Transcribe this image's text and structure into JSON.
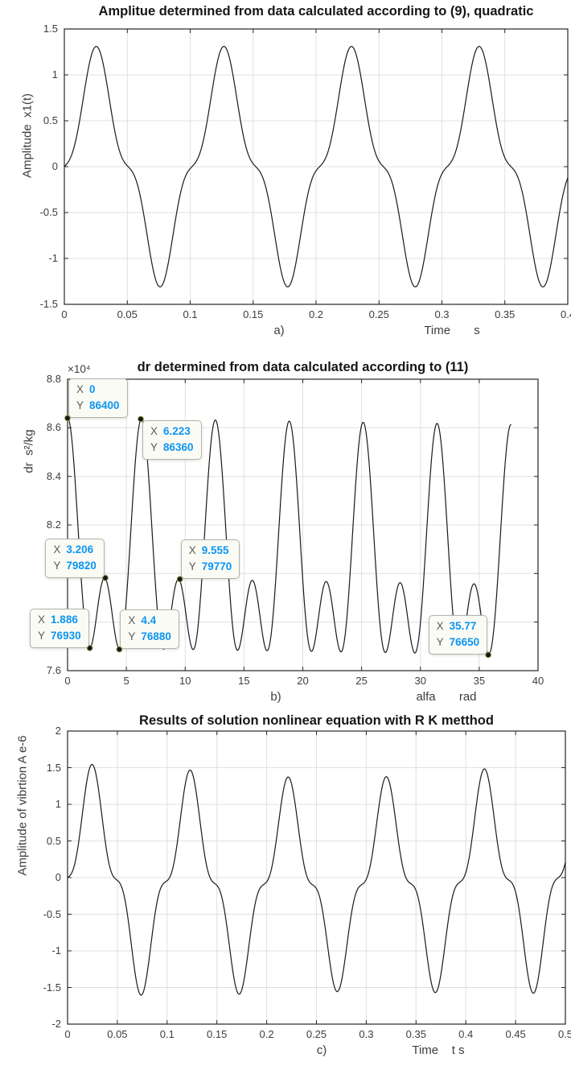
{
  "styles": {
    "background": "#ffffff",
    "axis_color": "#262626",
    "grid_color": "#e0e0e0",
    "curve_color": "#1a1a1a",
    "text_color": "#3d3d3d",
    "title_color": "#161616",
    "marker_color": "#151515",
    "marker_edge_color": "#99994d",
    "datatip_value_color": "#0d95f2",
    "datatip_label_color": "#5a5a5a",
    "datatip_bg": "#fbfbf5",
    "datatip_border": "#b4b4ac"
  },
  "chart_data": [
    {
      "type": "line",
      "panel": "a",
      "title": "Amplitue determined from data calculated according to (9), quadratic",
      "ylabel": "Amplitude  x1(t)",
      "xlabel": "Time       s",
      "corner_label": "a)",
      "xlim": [
        0,
        0.4
      ],
      "ylim": [
        -1.5,
        1.5
      ],
      "grid": true,
      "xticks": {
        "values": [
          0,
          0.05,
          0.1,
          0.15,
          0.2,
          0.25,
          0.3,
          0.35,
          0.4
        ],
        "labels": [
          "0",
          "0.05",
          "0.1",
          "0.15",
          "0.2",
          "0.25",
          "0.3",
          "0.35",
          "0.4"
        ]
      },
      "yticks": {
        "values": [
          -1.5,
          -1,
          -0.5,
          0,
          0.5,
          1,
          1.5
        ],
        "labels": [
          "-1.5",
          "-1",
          "-0.5",
          "0",
          "0.5",
          "1",
          "1.5"
        ]
      },
      "curve_model": {
        "x_start": 0,
        "x_end": 0.4,
        "period": 0.1014,
        "offset": 0,
        "terms": [
          {
            "fn": "sin",
            "n": 1,
            "amp": 1.04
          },
          {
            "fn": "sin",
            "n": 3,
            "amp": -0.27
          }
        ]
      },
      "key_points": {
        "peak_value": 1.3,
        "trough_value": -1.3,
        "cycles_shown": 4
      }
    },
    {
      "type": "line",
      "panel": "b",
      "title": "dr determined from data calculated according to (11)",
      "y_exponent_label": "×10⁴",
      "ylabel": "dr  s²/kg",
      "xlabel": "alfa       rad",
      "corner_label": "b)",
      "xlim": [
        0,
        40
      ],
      "ylim": [
        76000,
        88000
      ],
      "grid": true,
      "xticks": {
        "values": [
          0,
          5,
          10,
          15,
          20,
          25,
          30,
          35,
          40
        ],
        "labels": [
          "0",
          "5",
          "10",
          "15",
          "20",
          "25",
          "30",
          "35",
          "40"
        ]
      },
      "yticks": {
        "values": [
          76000,
          78000,
          80000,
          82000,
          84000,
          86000,
          88000
        ],
        "labels": [
          "7.6",
          "7.8",
          "8",
          "8.2",
          "8.4",
          "8.6",
          "8.8"
        ]
      },
      "curve_model": {
        "x_start": 0,
        "x_end": 37.72,
        "period": 6.28319,
        "offset": 80315,
        "drift": -7.5,
        "terms": [
          {
            "fn": "cos",
            "n": 1,
            "amp": 3358
          },
          {
            "fn": "cos",
            "n": 2,
            "amp": 2810
          },
          {
            "fn": "cos",
            "n": 3,
            "amp": -68
          }
        ]
      },
      "datatips": [
        {
          "x": 0,
          "y": 86400,
          "x_text": "0",
          "y_text": "86400",
          "attach": "bl"
        },
        {
          "x": 6.223,
          "y": 86360,
          "x_text": "6.223",
          "y_text": "86360",
          "attach": "tl"
        },
        {
          "x": 3.206,
          "y": 79820,
          "x_text": "3.206",
          "y_text": "79820",
          "attach": "br"
        },
        {
          "x": 9.555,
          "y": 79770,
          "x_text": "9.555",
          "y_text": "79770",
          "attach": "bl"
        },
        {
          "x": 1.886,
          "y": 76930,
          "x_text": "1.886",
          "y_text": "76930",
          "attach": "br"
        },
        {
          "x": 4.4,
          "y": 76880,
          "x_text": "4.4",
          "y_text": "76880",
          "attach": "bl"
        },
        {
          "x": 35.77,
          "y": 76650,
          "x_text": "35.77",
          "y_text": "76650",
          "attach": "br"
        }
      ]
    },
    {
      "type": "line",
      "panel": "c",
      "title": "Results of solution nonlinear equation with R K metthod",
      "ylabel": "Amplitude of vibrtion A e-6",
      "xlabel": "Time    t s",
      "corner_label": "c)",
      "xlim": [
        0,
        0.5
      ],
      "ylim": [
        -2,
        2
      ],
      "grid": true,
      "xticks": {
        "values": [
          0,
          0.05,
          0.1,
          0.15,
          0.2,
          0.25,
          0.3,
          0.35,
          0.4,
          0.45,
          0.5
        ],
        "labels": [
          "0",
          "0.05",
          "0.1",
          "0.15",
          "0.2",
          "0.25",
          "0.3",
          "0.35",
          "0.4",
          "0.45",
          "0.5"
        ]
      },
      "yticks": {
        "values": [
          -2,
          -1.5,
          -1,
          -0.5,
          0,
          0.5,
          1,
          1.5,
          2
        ],
        "labels": [
          "-2",
          "-1.5",
          "-1",
          "-0.5",
          "0",
          "0.5",
          "1",
          "1.5",
          "2"
        ]
      },
      "curve_model": {
        "x_start": 0,
        "x_end": 0.5,
        "period": 0.0985,
        "offset": 0,
        "terms": [
          {
            "fn": "sin",
            "n": 1,
            "amp": 1.17
          },
          {
            "fn": "sin",
            "n": 3,
            "amp": -0.34
          }
        ],
        "am": {
          "period": 0.45,
          "center": 0.05,
          "depth": 0.035
        },
        "slow": [
          {
            "period": 1.0,
            "amp": -0.1,
            "phase": 0
          }
        ]
      },
      "key_points": {
        "peak_values": [
          1.53,
          1.51,
          1.36,
          1.36,
          1.49
        ],
        "trough_values": [
          -1.55,
          -1.62,
          -1.65,
          -1.6,
          -1.62
        ],
        "cycles_shown": 5
      }
    }
  ]
}
